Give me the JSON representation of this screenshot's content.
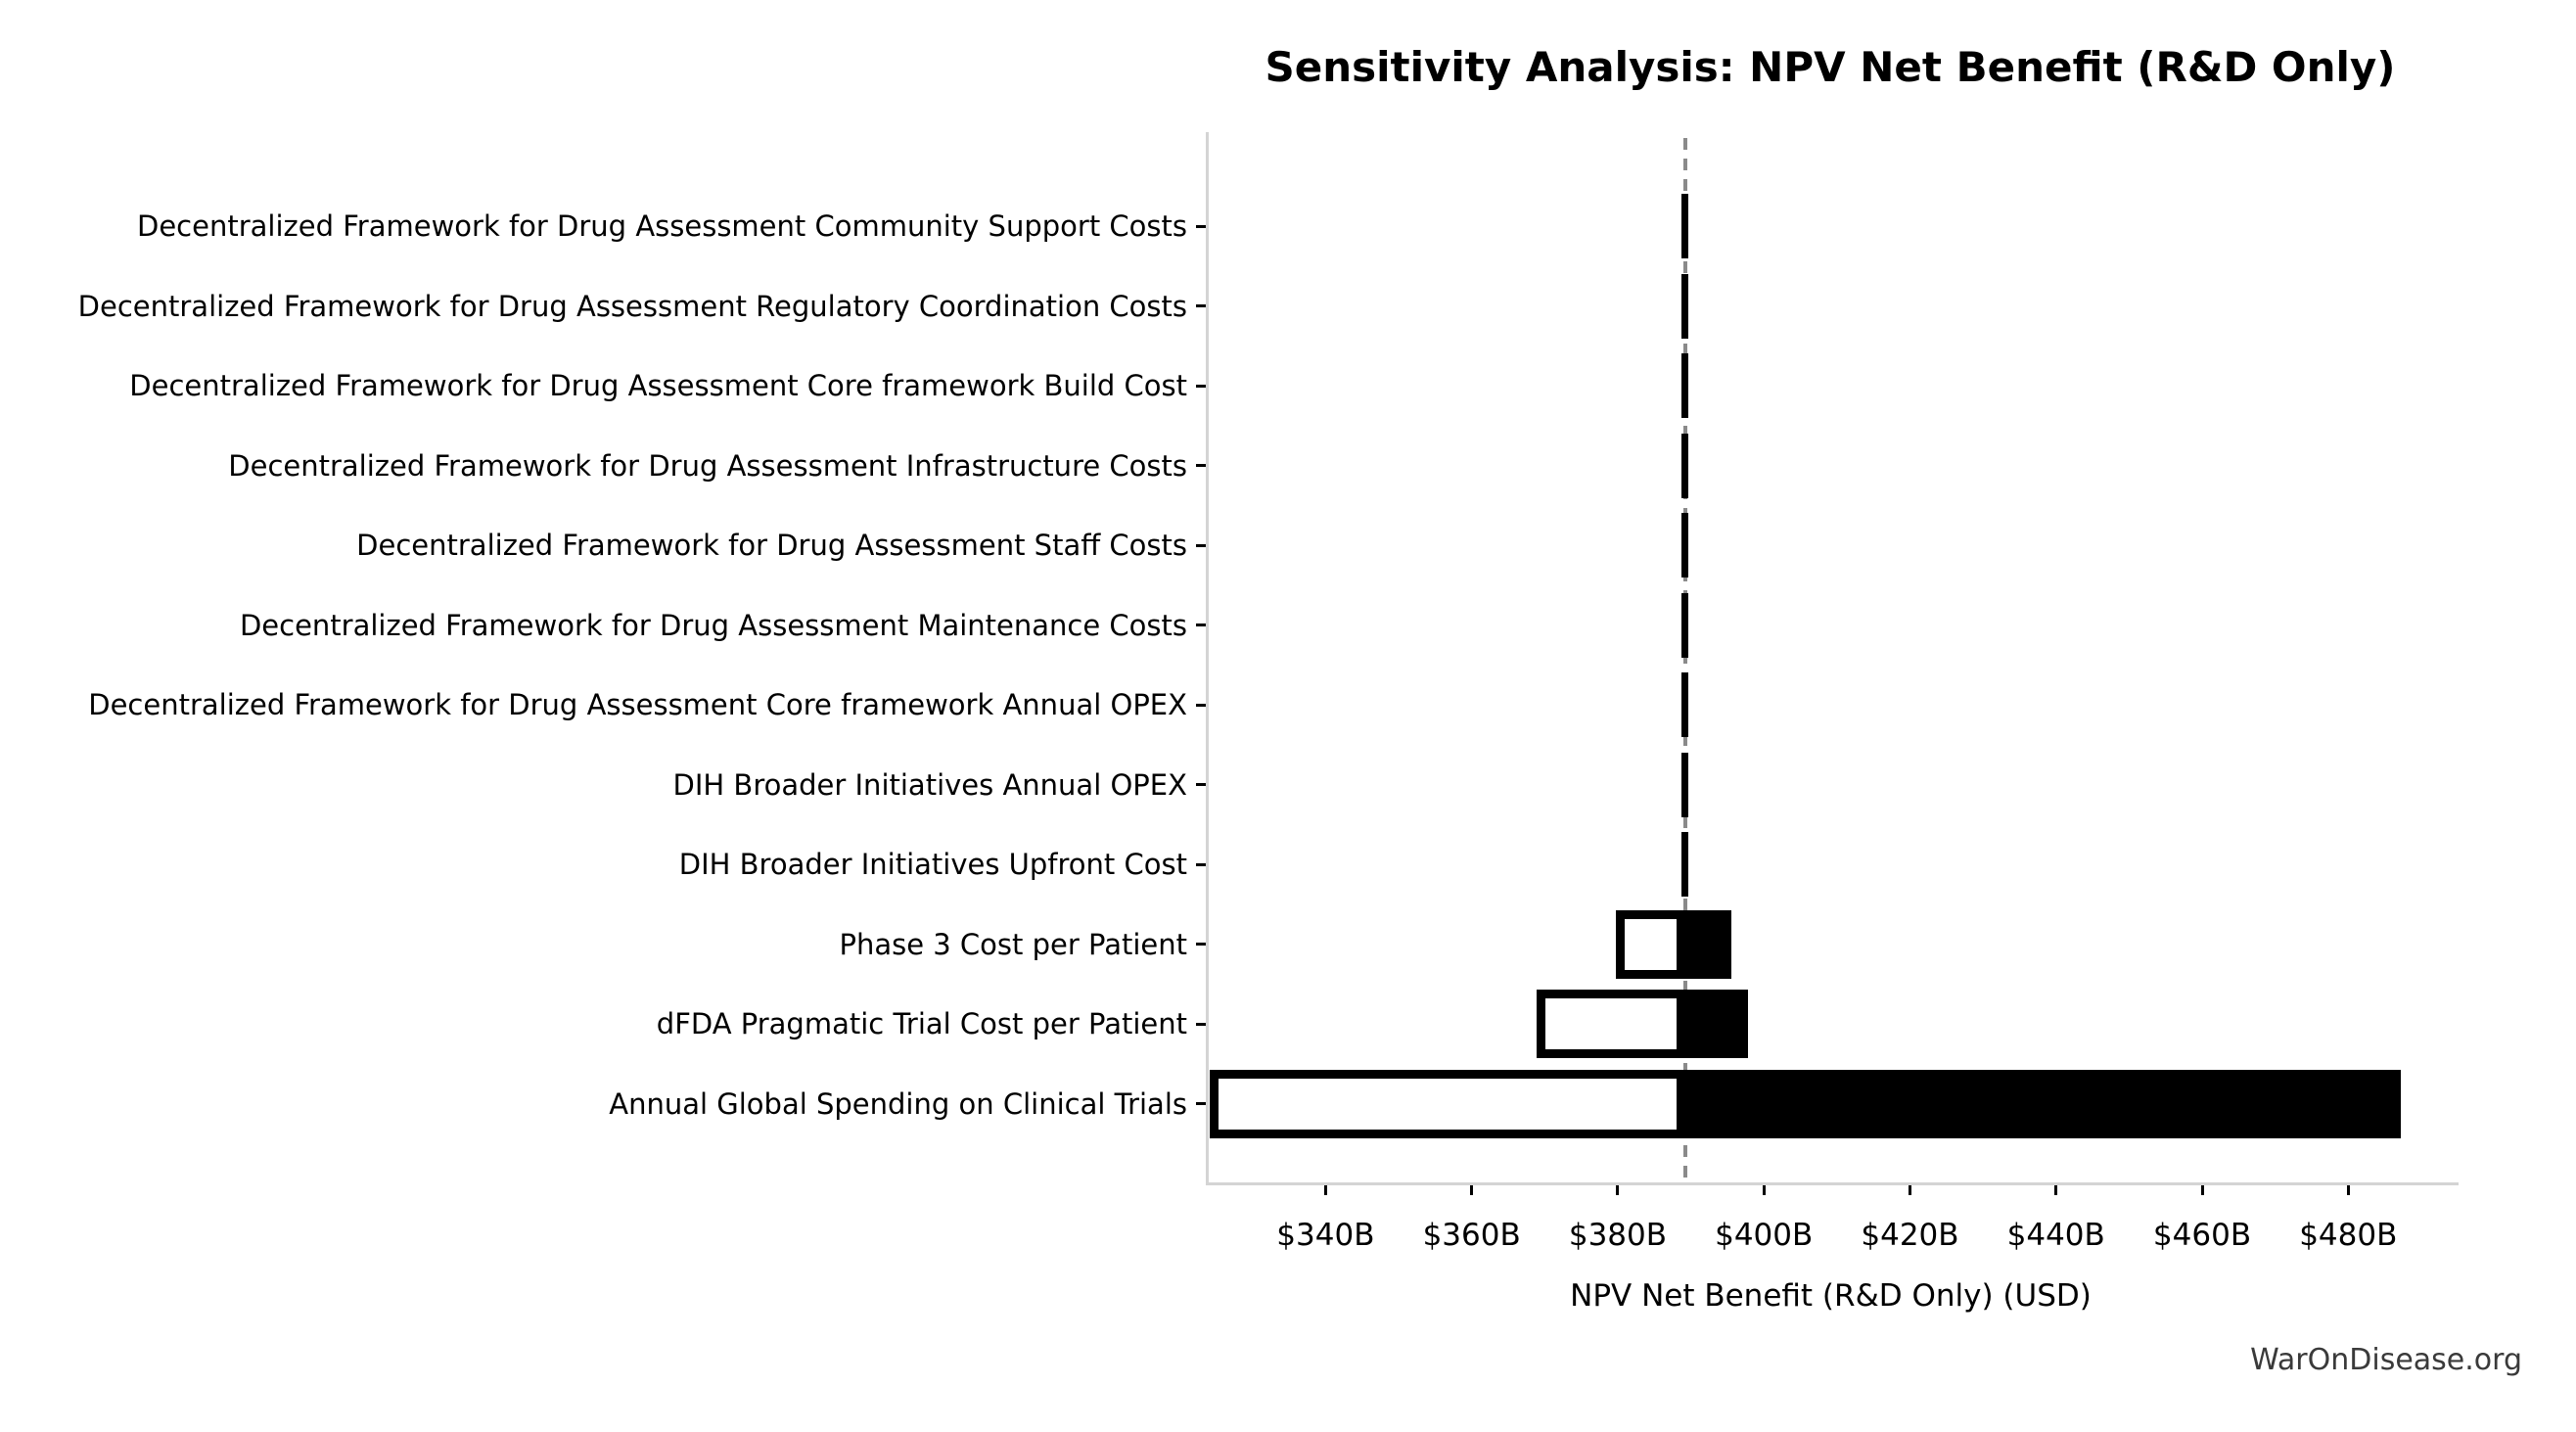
{
  "watermark": "WarOnDisease.org",
  "chart_data": {
    "type": "bar",
    "subtype": "tornado-sensitivity",
    "orientation": "horizontal",
    "title": "Sensitivity Analysis: NPV Net Benefit (R&D Only)",
    "xlabel": "NPV Net Benefit (R&D Only) (USD)",
    "unit": "billions USD",
    "baseline_value": 388.8,
    "xlim": [
      323.6,
      494.7
    ],
    "xticks": [
      340,
      360,
      380,
      400,
      420,
      440,
      460,
      480
    ],
    "xtick_labels": [
      "$340B",
      "$360B",
      "$380B",
      "$400B",
      "$420B",
      "$440B",
      "$460B",
      "$480B"
    ],
    "grid": false,
    "legend": null,
    "categories": [
      "Decentralized Framework for Drug Assessment Community Support Costs",
      "Decentralized Framework for Drug Assessment Regulatory Coordination Costs",
      "Decentralized Framework for Drug Assessment Core framework Build Cost",
      "Decentralized Framework for Drug Assessment Infrastructure Costs",
      "Decentralized Framework for Drug Assessment Staff Costs",
      "Decentralized Framework for Drug Assessment Maintenance Costs",
      "Decentralized Framework for Drug Assessment Core framework Annual OPEX",
      "DIH Broader Initiatives Annual OPEX",
      "DIH Broader Initiatives Upfront Cost",
      "Phase 3 Cost per Patient",
      "dFDA Pragmatic Trial Cost per Patient",
      "Annual Global Spending on Clinical Trials"
    ],
    "series": [
      {
        "name": "low_end_npv",
        "values": [
          388.8,
          388.8,
          388.8,
          388.8,
          388.8,
          388.8,
          388.8,
          388.8,
          388.8,
          379.3,
          368.5,
          323.8
        ]
      },
      {
        "name": "high_end_npv",
        "values": [
          388.8,
          388.8,
          388.8,
          388.8,
          388.8,
          388.8,
          388.8,
          388.8,
          388.8,
          395.1,
          397.4,
          486.8
        ]
      }
    ],
    "colors": {
      "low_fill": "#ffffff",
      "high_fill": "#000000",
      "bar_edge": "#000000",
      "baseline_line": "#8a8a8a",
      "spine": "#d4d4d4",
      "text": "#000000",
      "watermark": "#3a3a3a"
    }
  }
}
